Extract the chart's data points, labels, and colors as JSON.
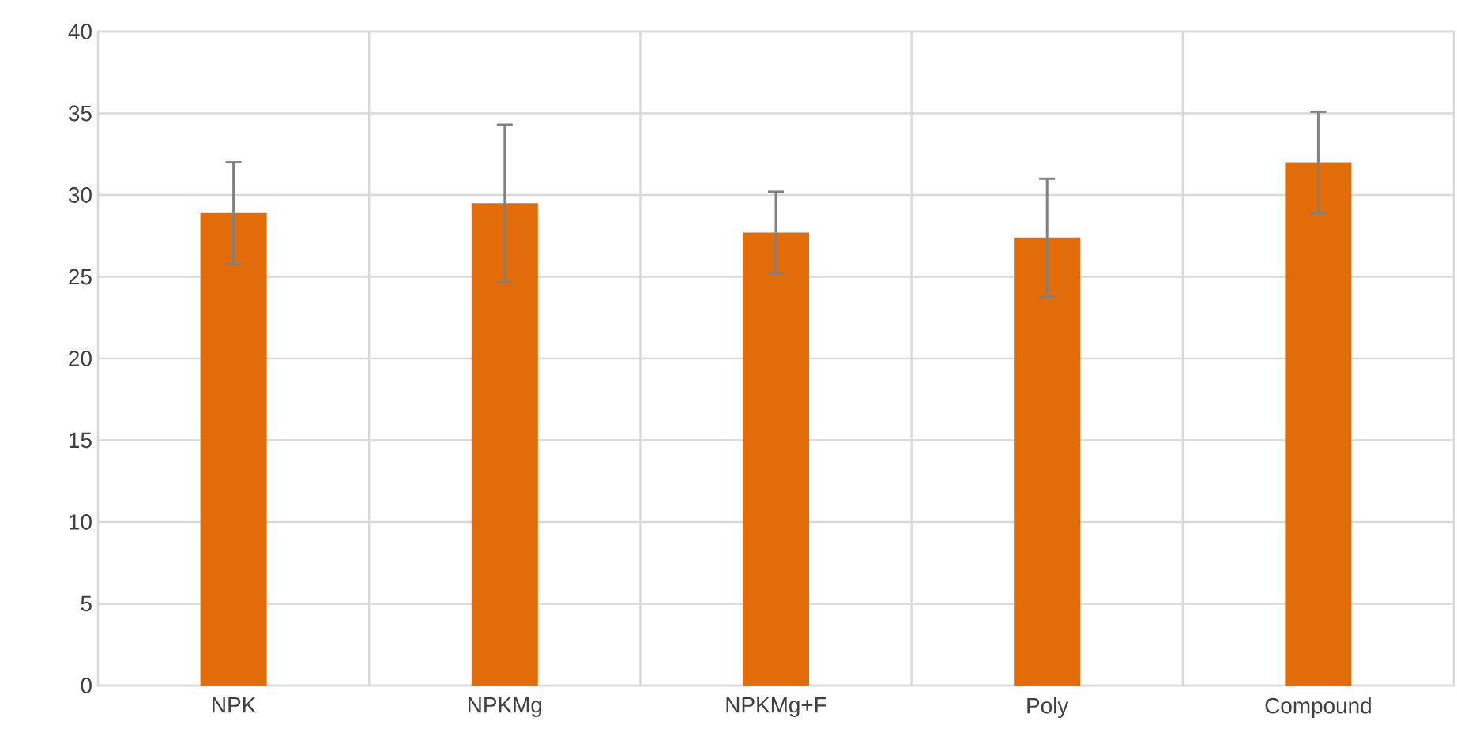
{
  "chart_data": {
    "type": "bar",
    "categories": [
      "NPK",
      "NPKMg",
      "NPKMg+F",
      "Poly",
      "Compound"
    ],
    "values": [
      28.9,
      29.5,
      27.7,
      27.4,
      32.0
    ],
    "errors": [
      3.1,
      4.8,
      2.5,
      3.6,
      3.1
    ],
    "color": "#e36c0a",
    "ylim": [
      0,
      40
    ],
    "yticks": [
      0,
      5,
      10,
      15,
      20,
      25,
      30,
      35,
      40
    ],
    "grid": true
  }
}
